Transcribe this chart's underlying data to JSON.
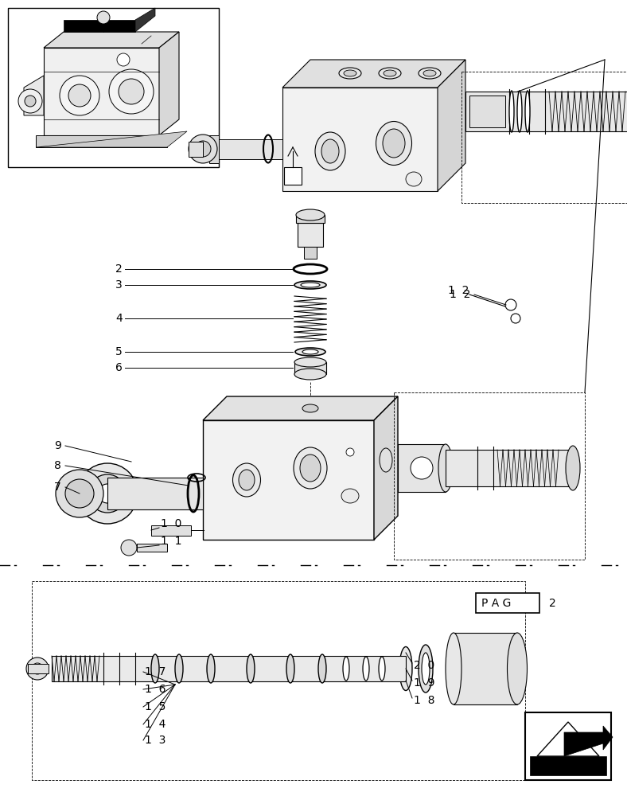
{
  "bg_color": "#ffffff",
  "line_color": "#000000",
  "fig_width": 7.88,
  "fig_height": 10.0,
  "dpi": 100
}
